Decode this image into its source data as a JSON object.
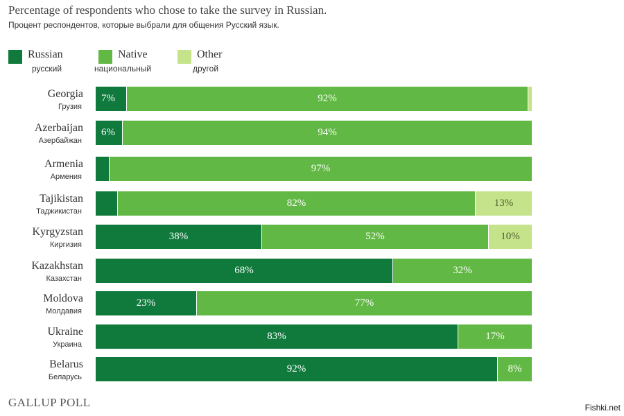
{
  "chart_data": {
    "type": "bar",
    "orientation": "horizontal",
    "stacked": true,
    "title": "Percentage of respondents who chose to take the survey in Russian.",
    "subtitle": "Процент респондентов, которые выбрали для общения Русский язык.",
    "legend_placement": "top-left",
    "xlim": [
      0,
      100
    ],
    "grid": false,
    "colors": {
      "russian": "#0f7a3c",
      "native": "#62b845",
      "other": "#c5e38b"
    },
    "series": [
      {
        "key": "russian",
        "name": "Russian",
        "name_ru": "русский"
      },
      {
        "key": "native",
        "name": "Native",
        "name_ru": "национальный"
      },
      {
        "key": "other",
        "name": "Other",
        "name_ru": "другой"
      }
    ],
    "rows": [
      {
        "en": "Georgia",
        "ru": "Грузия",
        "russian": {
          "value": 7,
          "label": "7%"
        },
        "native": {
          "value": 92,
          "label": "92%"
        },
        "other": {
          "value": 1,
          "label": ""
        }
      },
      {
        "en": "Azerbaijan",
        "ru": "Азербайжан",
        "russian": {
          "value": 6,
          "label": "6%"
        },
        "native": {
          "value": 94,
          "label": "94%"
        },
        "other": {
          "value": 0,
          "label": ""
        }
      },
      {
        "en": "Armenia",
        "ru": "Армения",
        "russian": {
          "value": 3,
          "label": ""
        },
        "native": {
          "value": 97,
          "label": "97%"
        },
        "other": {
          "value": 0,
          "label": ""
        }
      },
      {
        "en": "Tajikistan",
        "ru": "Таджикистан",
        "russian": {
          "value": 5,
          "label": ""
        },
        "native": {
          "value": 82,
          "label": "82%"
        },
        "other": {
          "value": 13,
          "label": "13%"
        }
      },
      {
        "en": "Kyrgyzstan",
        "ru": "Киргизия",
        "russian": {
          "value": 38,
          "label": "38%"
        },
        "native": {
          "value": 52,
          "label": "52%"
        },
        "other": {
          "value": 10,
          "label": "10%"
        }
      },
      {
        "en": "Kazakhstan",
        "ru": "Казахстан",
        "russian": {
          "value": 68,
          "label": "68%"
        },
        "native": {
          "value": 32,
          "label": "32%"
        },
        "other": {
          "value": 0,
          "label": ""
        }
      },
      {
        "en": "Moldova",
        "ru": "Молдавия",
        "russian": {
          "value": 23,
          "label": "23%"
        },
        "native": {
          "value": 77,
          "label": "77%"
        },
        "other": {
          "value": 0,
          "label": ""
        }
      },
      {
        "en": "Ukraine",
        "ru": "Украина",
        "russian": {
          "value": 83,
          "label": "83%"
        },
        "native": {
          "value": 17,
          "label": "17%"
        },
        "other": {
          "value": 0,
          "label": ""
        }
      },
      {
        "en": "Belarus",
        "ru": "Беларусь",
        "russian": {
          "value": 92,
          "label": "92%"
        },
        "native": {
          "value": 8,
          "label": "8%"
        },
        "other": {
          "value": 0,
          "label": ""
        }
      }
    ]
  },
  "footer": {
    "source": "GALLUP POLL",
    "watermark": "Fishki.net"
  }
}
